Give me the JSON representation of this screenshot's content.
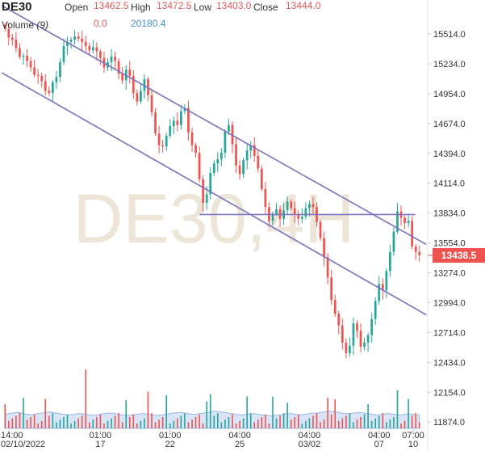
{
  "header": {
    "symbol": "DE30",
    "open_label": "Open",
    "open_value": "13462.5",
    "high_label": "High",
    "high_value": "13472.5",
    "low_label": "Low",
    "low_value": "13403.0",
    "close_label": "Close",
    "close_value": "13444.0",
    "volume_label": "Volume",
    "volume_period": "(9)",
    "volume_value": "0.0",
    "volume_ma_value": "20180.4"
  },
  "watermark": "DE30,4H",
  "last_price": "13438.5",
  "colors": {
    "up": "#26a69a",
    "down": "#ef5350",
    "trendline": "#7b72c0",
    "volume_ma": "#b9cdef",
    "last_price_bg": "#ef5350"
  },
  "chart_data": {
    "type": "candlestick",
    "interval": "4H",
    "ylim": [
      11800,
      15620
    ],
    "y_ticks": [
      "15514.0",
      "15234.0",
      "14954.0",
      "14674.0",
      "14394.0",
      "14114.0",
      "13834.0",
      "13554.0",
      "13274.0",
      "12994.0",
      "12714.0",
      "12434.0",
      "12154.0",
      "11874.0"
    ],
    "x_ticks": [
      {
        "time": "14:00",
        "date": "02/10/2022"
      },
      {
        "time": "01:00",
        "date": "17"
      },
      {
        "time": "01:00",
        "date": "22"
      },
      {
        "time": "04:00",
        "date": "25"
      },
      {
        "time": "04:00",
        "date": "03/02"
      },
      {
        "time": "04:00",
        "date": "07"
      },
      {
        "time": "07:00",
        "date": "10"
      }
    ],
    "closes": [
      15560,
      15480,
      15460,
      15380,
      15300,
      15310,
      15260,
      15200,
      15130,
      15120,
      15070,
      14980,
      14960,
      15060,
      15110,
      15250,
      15400,
      15440,
      15460,
      15490,
      15470,
      15440,
      15400,
      15360,
      15390,
      15350,
      15290,
      15200,
      15250,
      15300,
      15260,
      15140,
      15080,
      15180,
      15120,
      14960,
      14880,
      14980,
      15090,
      14940,
      14780,
      14580,
      14470,
      14460,
      14560,
      14650,
      14700,
      14660,
      14790,
      14820,
      14590,
      14470,
      14400,
      14150,
      13930,
      14010,
      14210,
      14300,
      14340,
      14400,
      14600,
      14660,
      14480,
      14280,
      14200,
      14330,
      14420,
      14470,
      14370,
      14250,
      14060,
      13890,
      13760,
      13830,
      13870,
      13780,
      13860,
      13940,
      13880,
      13820,
      13780,
      13800,
      13880,
      13920,
      13890,
      13750,
      13600,
      13420,
      13230,
      13020,
      12890,
      12780,
      12620,
      12520,
      12590,
      12800,
      12730,
      12580,
      12620,
      12690,
      12840,
      13010,
      13170,
      13110,
      13290,
      13470,
      13660,
      13850,
      13790,
      13740,
      13760,
      13520,
      13470,
      13438.5
    ],
    "volume_ma": [
      2.5,
      2.6,
      2.7,
      2.8,
      2.8,
      2.6,
      2.5,
      2.4,
      2.5,
      2.6,
      2.7,
      2.8,
      2.9,
      2.8,
      2.7,
      2.6,
      2.5,
      2.4,
      2.4,
      2.5,
      2.6,
      2.6,
      2.5,
      2.4,
      2.3,
      2.4,
      2.5,
      2.6,
      2.7,
      2.7,
      2.6,
      2.5,
      2.4,
      2.3,
      2.3,
      2.4,
      2.5,
      2.6,
      2.6,
      2.5,
      2.4,
      2.3,
      2.3,
      2.4,
      2.5,
      2.6,
      2.7,
      2.8,
      2.8,
      2.7,
      2.6,
      2.5,
      2.5,
      2.6,
      2.7,
      2.8,
      2.9,
      3.0,
      3.0,
      2.9,
      2.8,
      2.7,
      2.6,
      2.5,
      2.4,
      2.4,
      2.5,
      2.6,
      2.6,
      2.5,
      2.4,
      2.3,
      2.2,
      2.2,
      2.3,
      2.4,
      2.5,
      2.6,
      2.6,
      2.5,
      2.4,
      2.4,
      2.5,
      2.6,
      2.7,
      2.7,
      2.8,
      2.9,
      3.0,
      3.0,
      2.9,
      2.8,
      2.7,
      2.6,
      2.6,
      2.7,
      2.8,
      2.8,
      2.7,
      2.6,
      2.5,
      2.4,
      2.4,
      2.5,
      2.6,
      2.6,
      2.5,
      2.4,
      2.4,
      2.5,
      2.6,
      2.5,
      2.4,
      2.4
    ],
    "trend_lines": [
      {
        "name": "channel-upper",
        "from": [
          0,
          15780
        ],
        "to": [
          114,
          13540
        ]
      },
      {
        "name": "channel-lower",
        "from": [
          0,
          15150
        ],
        "to": [
          114,
          12880
        ]
      },
      {
        "name": "horizontal-level",
        "from": [
          54,
          13820
        ],
        "to": [
          111,
          13820
        ]
      }
    ]
  }
}
